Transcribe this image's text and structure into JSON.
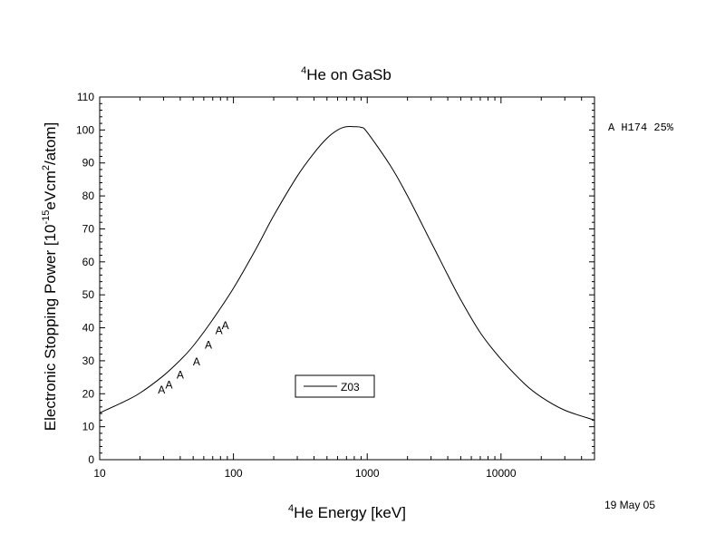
{
  "chart_data": {
    "type": "line",
    "title": {
      "sup": "4",
      "text": "He on GaSb"
    },
    "xlabel": {
      "sup": "4",
      "text": "He Energy [keV]"
    },
    "ylabel": {
      "pre": "Electronic Stopping Power [10",
      "sup1": "-15",
      "mid": "eVcm",
      "sup2": "2",
      "post": "/atom]"
    },
    "x_scale": "log",
    "xlim": [
      10,
      50000
    ],
    "ylim": [
      0,
      110
    ],
    "x_ticks": [
      10,
      100,
      1000,
      10000
    ],
    "x_tick_labels": [
      "10",
      "100",
      "1000",
      "10000"
    ],
    "y_ticks": [
      0,
      10,
      20,
      30,
      40,
      50,
      60,
      70,
      80,
      90,
      100,
      110
    ],
    "y_tick_labels": [
      "0",
      "10",
      "20",
      "30",
      "40",
      "50",
      "60",
      "70",
      "80",
      "90",
      "100",
      "110"
    ],
    "series": [
      {
        "name": "Z03",
        "style": "line",
        "color": "#000000",
        "x": [
          10,
          15,
          20,
          30,
          40,
          50,
          70,
          100,
          150,
          200,
          300,
          400,
          500,
          600,
          700,
          800,
          900,
          1000,
          1500,
          2000,
          3000,
          4000,
          5000,
          7000,
          10000,
          15000,
          20000,
          30000,
          50000
        ],
        "y": [
          14.2,
          17.5,
          20.2,
          25.5,
          30.2,
          34.5,
          42.5,
          52,
          64.5,
          74,
          86,
          93,
          97.5,
          100,
          101,
          101,
          100.8,
          99.3,
          89,
          80,
          66,
          56,
          48.5,
          38.5,
          30.5,
          23,
          19,
          15,
          12
        ]
      },
      {
        "marker": "A",
        "style": "marker",
        "x": [
          29,
          33,
          40,
          53,
          65,
          78,
          87
        ],
        "y": [
          21.5,
          23,
          26,
          30,
          35,
          39.5,
          41
        ]
      }
    ],
    "legend": {
      "label": "Z03",
      "placement": "lower-center"
    }
  },
  "side_note": "A H174 25%",
  "date": "19 May 05"
}
